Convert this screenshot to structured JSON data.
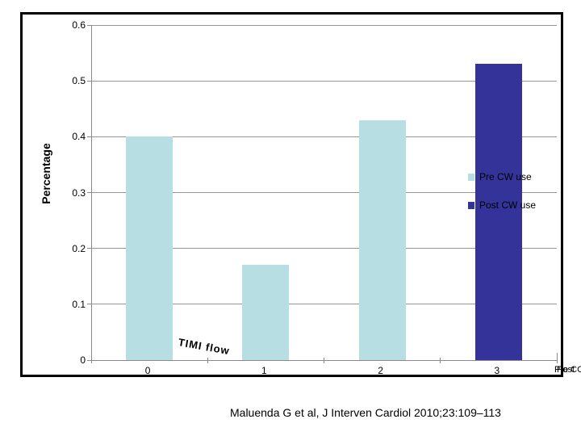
{
  "slide": {
    "citation": "Maluenda G et al, J Interven Cardiol 2010;23:109–113"
  },
  "chart_data": {
    "type": "bar",
    "title": "",
    "categories": [
      "0",
      "1",
      "2",
      "3"
    ],
    "series": [
      {
        "name": "Pre CW use",
        "color": "#b6dee3",
        "values": [
          0.4,
          0.17,
          0.43,
          null
        ]
      },
      {
        "name": "Post CW use",
        "color": "#333399",
        "values": [
          null,
          null,
          null,
          0.53
        ]
      }
    ],
    "xlabel": "TIMI flow",
    "ylabel": "Percentage",
    "ylim": [
      0,
      0.6
    ],
    "yticks": [
      0,
      0.1,
      0.2,
      0.3,
      0.4,
      0.5,
      0.6
    ],
    "ytick_labels": [
      "0",
      "0.1",
      "0.2",
      "0.3",
      "0.4",
      "0.5",
      "0.6"
    ],
    "grid": true,
    "legend_position": "middle-right",
    "corner_overflow_labels": [
      "Pre C",
      "Post C"
    ]
  }
}
